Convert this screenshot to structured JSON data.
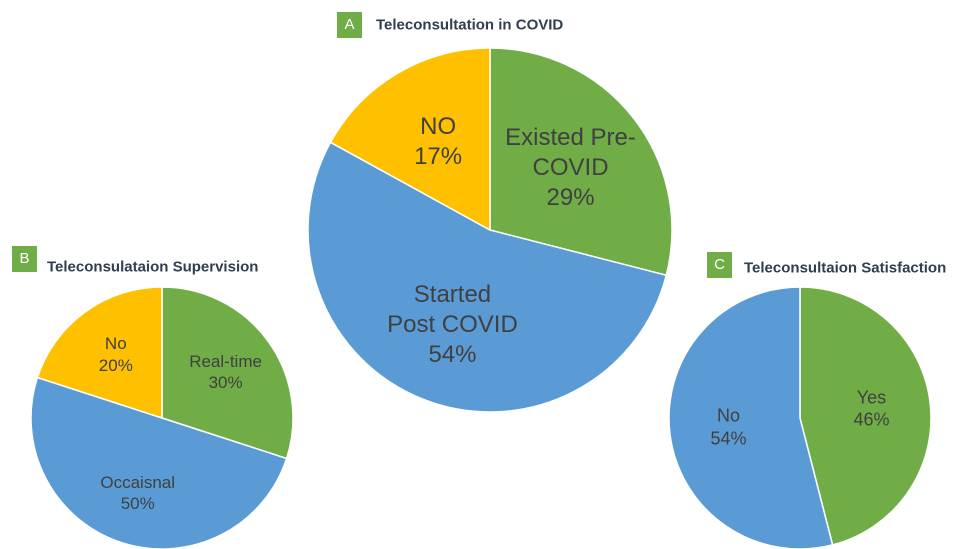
{
  "chart_data": [
    {
      "type": "pie",
      "panel": "A",
      "title": "Teleconsultation in COVID",
      "categories": [
        "Existed Pre-COVID",
        "Started Post COVID",
        "NO"
      ],
      "values": [
        29,
        54,
        17
      ],
      "value_labels": [
        "29%",
        "54%",
        "17%"
      ],
      "colors": [
        "#70ad47",
        "#5b9bd5",
        "#ffc000"
      ]
    },
    {
      "type": "pie",
      "panel": "B",
      "title": "Teleconsulataion Supervision",
      "categories": [
        "Real-time",
        "Occaisnal",
        "No"
      ],
      "values": [
        30,
        50,
        20
      ],
      "value_labels": [
        "30%",
        "50%",
        "20%"
      ],
      "colors": [
        "#70ad47",
        "#5b9bd5",
        "#ffc000"
      ]
    },
    {
      "type": "pie",
      "panel": "C",
      "title": "Teleconsultaion Satisfaction",
      "categories": [
        "Yes",
        "No"
      ],
      "values": [
        46,
        54
      ],
      "value_labels": [
        "46%",
        "54%"
      ],
      "colors": [
        "#70ad47",
        "#5b9bd5"
      ]
    }
  ]
}
